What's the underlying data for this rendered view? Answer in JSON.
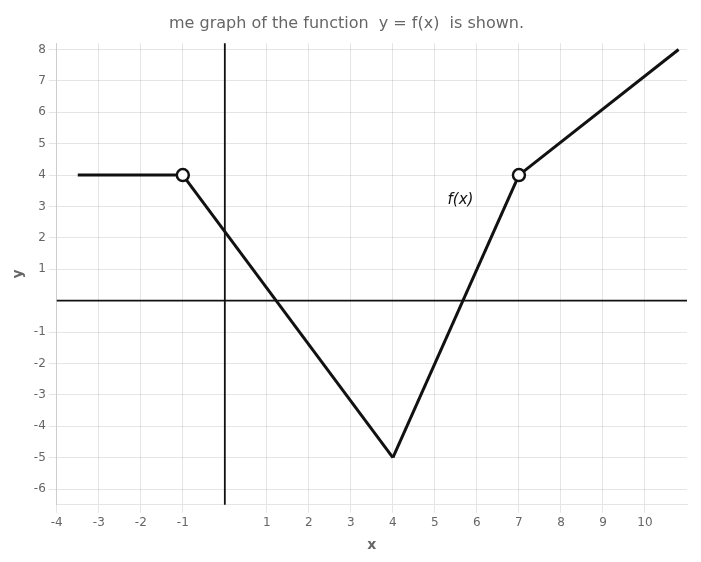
{
  "chart_data": {
    "type": "line",
    "title": "me graph of the function  y = f(x)  is shown.",
    "xlabel": "x",
    "ylabel": "y",
    "xlim": [
      -4,
      11
    ],
    "ylim": [
      -6.5,
      8.2
    ],
    "xticks": [
      -4,
      -3,
      -2,
      -1,
      1,
      2,
      3,
      4,
      5,
      6,
      7,
      8,
      9,
      10
    ],
    "yticks": [
      -6,
      -5,
      -4,
      -3,
      -2,
      -1,
      1,
      2,
      3,
      4,
      5,
      6,
      7,
      8
    ],
    "grid": true,
    "series": [
      {
        "x": [
          -3.5,
          -1
        ],
        "values": [
          4,
          4
        ],
        "color": "#111111",
        "marker": "none",
        "line_style": "solid"
      },
      {
        "x": [
          -1,
          4
        ],
        "values": [
          4,
          -5
        ],
        "color": "#111111",
        "marker": "none",
        "line_style": "solid"
      },
      {
        "x": [
          4,
          7
        ],
        "values": [
          -5,
          4
        ],
        "color": "#111111",
        "marker": "none",
        "line_style": "solid"
      },
      {
        "x": [
          7,
          10.8
        ],
        "values": [
          4,
          8.0
        ],
        "color": "#111111",
        "marker": "none",
        "line_style": "solid"
      },
      {
        "x": [
          -1,
          7
        ],
        "values": [
          4,
          4
        ],
        "color": "#111111",
        "marker": "open_circle",
        "line_style": "none"
      }
    ],
    "annotations": [
      {
        "text": "f(x)",
        "x": 5.3,
        "y": 3.2
      }
    ]
  }
}
